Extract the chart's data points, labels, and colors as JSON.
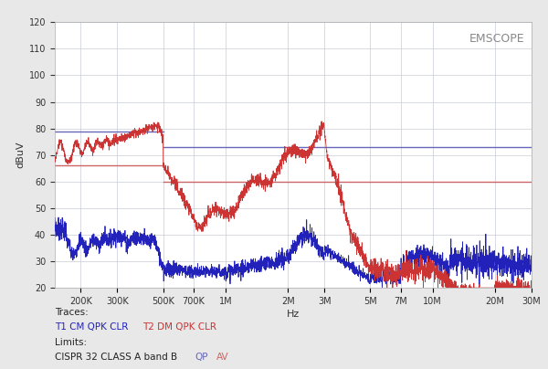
{
  "title": "EMSCOPE",
  "xlabel": "Hz",
  "ylabel": "dBuV",
  "xlim_log": [
    150000,
    30000000
  ],
  "ylim": [
    20,
    120
  ],
  "yticks": [
    20,
    30,
    40,
    50,
    60,
    70,
    80,
    90,
    100,
    110,
    120
  ],
  "xtick_positions": [
    200000,
    300000,
    500000,
    700000,
    1000000,
    2000000,
    3000000,
    5000000,
    7000000,
    10000000,
    20000000,
    30000000
  ],
  "xtick_labels": [
    "200K",
    "300K",
    "500K",
    "700K",
    "1M",
    "2M",
    "3M",
    "5M",
    "7M",
    "10M",
    "20M",
    "30M"
  ],
  "fig_bg_color": "#e8e8e8",
  "plot_bg_color": "#ffffff",
  "grid_color": "#c8ccd8",
  "cm_color": "#2222bb",
  "dm_color": "#cc3333",
  "limit_blue_color": "#6666bb",
  "limit_red_color": "#cc6666",
  "limit_qp_blue_segments": [
    {
      "x": [
        150000,
        500000
      ],
      "y": [
        79,
        79
      ]
    },
    {
      "x": [
        500000,
        30000000
      ],
      "y": [
        73,
        73
      ]
    }
  ],
  "limit_qp_red_segments": [
    {
      "x": [
        150000,
        500000
      ],
      "y": [
        66,
        66
      ]
    },
    {
      "x": [
        500000,
        30000000
      ],
      "y": [
        60,
        60
      ]
    }
  ],
  "traces_label": "Traces:",
  "trace1_label": "T1 CM QPK CLR",
  "trace2_label": "T2 DM QPK CLR",
  "limits_label": "Limits:",
  "limits_desc": "CISPR 32 CLASS A band B",
  "limits_qp_label": "QP",
  "limits_av_label": "AV"
}
